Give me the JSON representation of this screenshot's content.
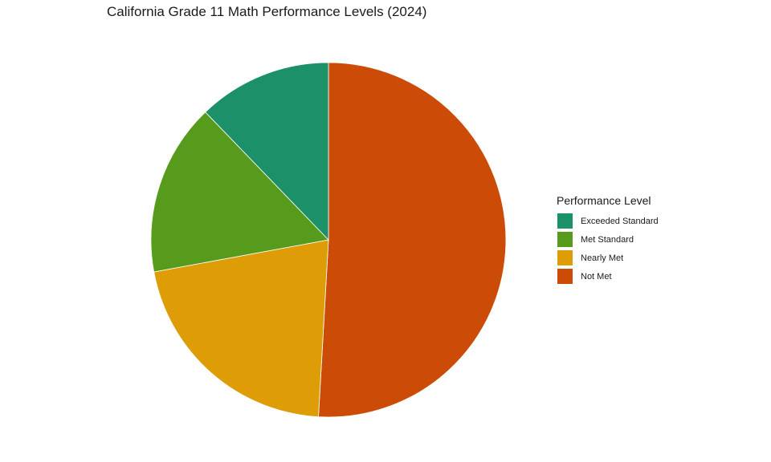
{
  "chart_data": {
    "type": "pie",
    "title": "California Grade 11 Math Performance Levels (2024)",
    "legend_title": "Performance Level",
    "legend_position": "right",
    "categories": [
      "Not Met",
      "Nearly Met",
      "Met Standard",
      "Exceeded Standard"
    ],
    "values": [
      50.9,
      21.2,
      15.7,
      12.2
    ],
    "colors": [
      "#CC4C07",
      "#DE9C07",
      "#579B1C",
      "#1C9068"
    ],
    "legend_order": [
      "Exceeded Standard",
      "Met Standard",
      "Nearly Met",
      "Not Met"
    ],
    "legend_colors": [
      "#1C9068",
      "#579B1C",
      "#DE9C07",
      "#CC4C07"
    ]
  }
}
